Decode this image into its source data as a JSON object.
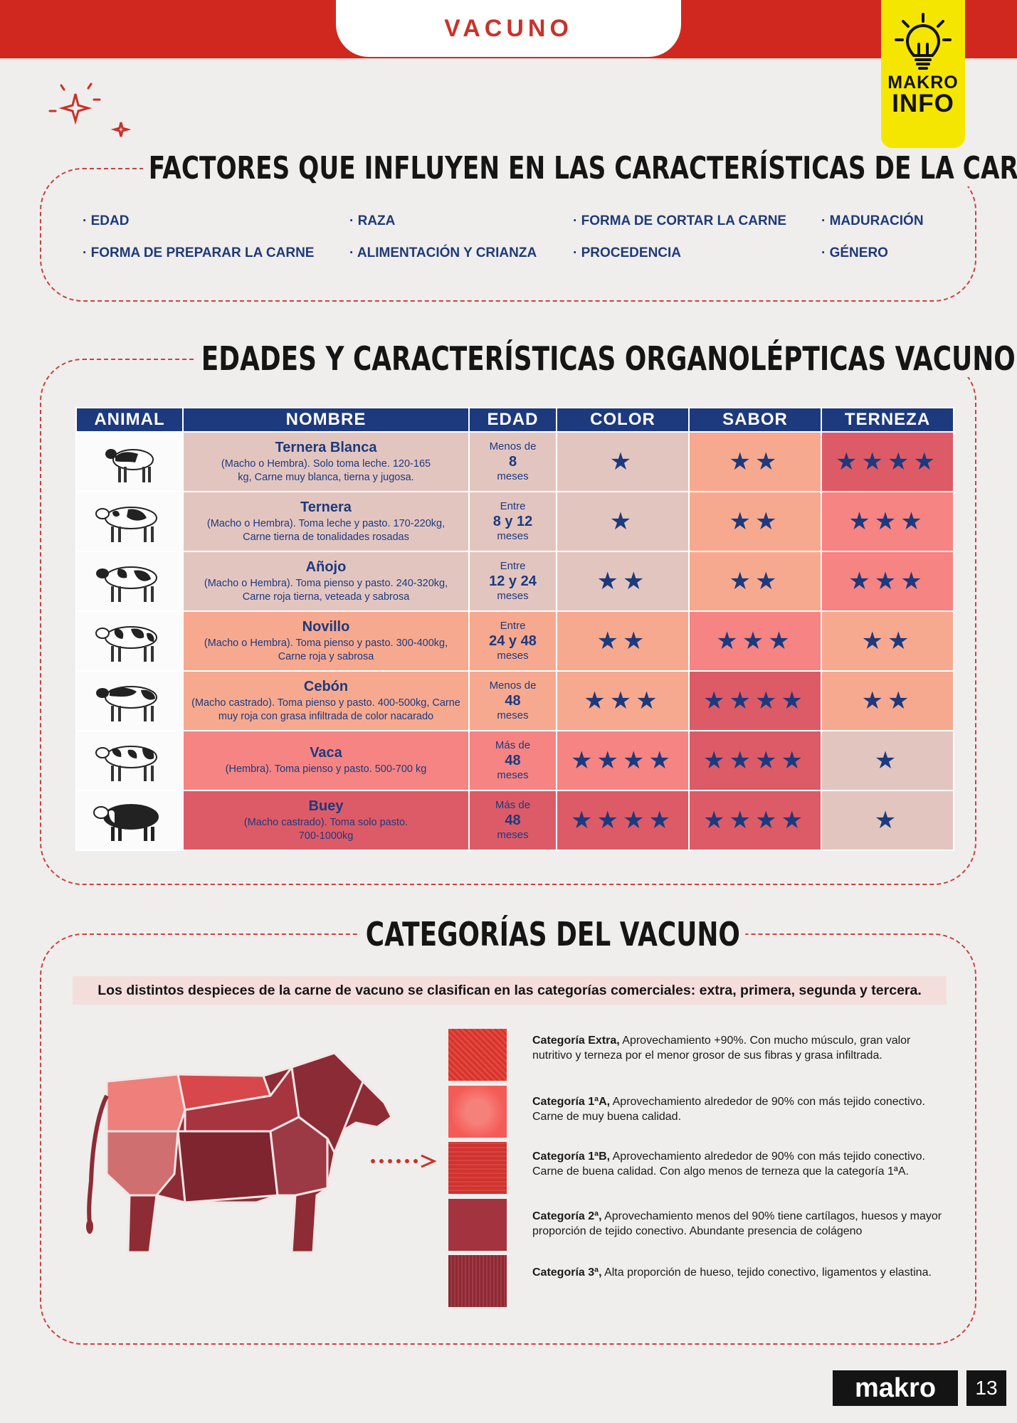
{
  "header": {
    "tab_title": "VACUNO",
    "badge_line1": "MAKRO",
    "badge_line2": "INFO"
  },
  "factors": {
    "title": "FACTORES QUE INFLUYEN EN LAS CARACTERÍSTICAS DE LA CARNE",
    "items": [
      "· EDAD",
      "· RAZA",
      "· FORMA DE CORTAR LA CARNE",
      "· MADURACIÓN",
      "· FORMA DE PREPARAR LA CARNE",
      "· ALIMENTACIÓN Y CRIANZA",
      "· PROCEDENCIA",
      "· GÉNERO"
    ]
  },
  "ages": {
    "title": "EDADES Y CARACTERÍSTICAS ORGANOLÉPTICAS VACUNO",
    "headers": [
      "ANIMAL",
      "NOMBRE",
      "EDAD",
      "COLOR",
      "SABOR",
      "TERNEZA"
    ],
    "rows": [
      {
        "name": "Ternera Blanca",
        "desc": "(Macho o Hembra). Solo toma leche. 120-165 kg, Carne muy blanca, tierna y jugosa.",
        "age_pre": "Menos de",
        "age_val": "8",
        "age_post": "meses",
        "color": "★",
        "sabor": "★★",
        "terneza": "★★★★"
      },
      {
        "name": "Ternera",
        "desc": "(Macho o Hembra). Toma leche y pasto. 170-220kg, Carne tierna de tonalidades rosadas",
        "age_pre": "Entre",
        "age_val": "8 y 12",
        "age_post": "meses",
        "color": "★",
        "sabor": "★★",
        "terneza": "★★★"
      },
      {
        "name": "Añojo",
        "desc": "(Macho o Hembra). Toma pienso y pasto. 240-320kg, Carne roja tierna, veteada y sabrosa",
        "age_pre": "Entre",
        "age_val": "12 y 24",
        "age_post": "meses",
        "color": "★★",
        "sabor": "★★",
        "terneza": "★★★"
      },
      {
        "name": "Novillo",
        "desc": "(Macho o Hembra). Toma pienso y pasto. 300-400kg, Carne roja y sabrosa",
        "age_pre": "Entre",
        "age_val": "24 y 48",
        "age_post": "meses",
        "color": "★★",
        "sabor": "★★★",
        "terneza": "★★"
      },
      {
        "name": "Cebón",
        "desc": "(Macho castrado). Toma pienso y pasto. 400-500kg, Carne muy roja con grasa infiltrada de color nacarado",
        "age_pre": "Menos de",
        "age_val": "48",
        "age_post": "meses",
        "color": "★★★",
        "sabor": "★★★★",
        "terneza": "★★"
      },
      {
        "name": "Vaca",
        "desc": "(Hembra). Toma pienso y pasto. 500-700 kg",
        "age_pre": "Más de",
        "age_val": "48",
        "age_post": "meses",
        "color": "★★★★",
        "sabor": "★★★★",
        "terneza": "★"
      },
      {
        "name": "Buey",
        "desc": "(Macho castrado). Toma solo pasto. 700-1000kg",
        "age_pre": "Más de",
        "age_val": "48",
        "age_post": "meses",
        "color": "★★★★",
        "sabor": "★★★★",
        "terneza": "★"
      }
    ]
  },
  "categories": {
    "title": "CATEGORÍAS DEL VACUNO",
    "intro": "Los distintos despieces de la carne de vacuno se clasifican en las categorías comerciales: extra, primera, segunda y tercera.",
    "items": [
      {
        "label": "Categoría Extra,",
        "text": " Aprovechamiento +90%. Con mucho músculo, gran valor nutritivo y terneza por el menor grosor de sus fibras y grasa infiltrada."
      },
      {
        "label": "Categoría 1ªA,",
        "text": " Aprovechamiento alrededor de 90% con más tejido conectivo. Carne de muy buena calidad."
      },
      {
        "label": "Categoría 1ªB,",
        "text": " Aprovechamiento alrededor de 90% con más tejido conectivo. Carne de buena calidad. Con algo menos de terneza que la categoría 1ªA."
      },
      {
        "label": "Categoría 2ª,",
        "text": " Aprovechamiento menos del 90% tiene cartílagos, huesos y mayor proporción de tejido conectivo. Abundante presencia de colágeno"
      },
      {
        "label": "Categoría 3ª,",
        "text": " Alta proporción de hueso, tejido conectivo, ligamentos y elastina."
      }
    ]
  },
  "footer": {
    "brand": "makro",
    "page": "13"
  }
}
